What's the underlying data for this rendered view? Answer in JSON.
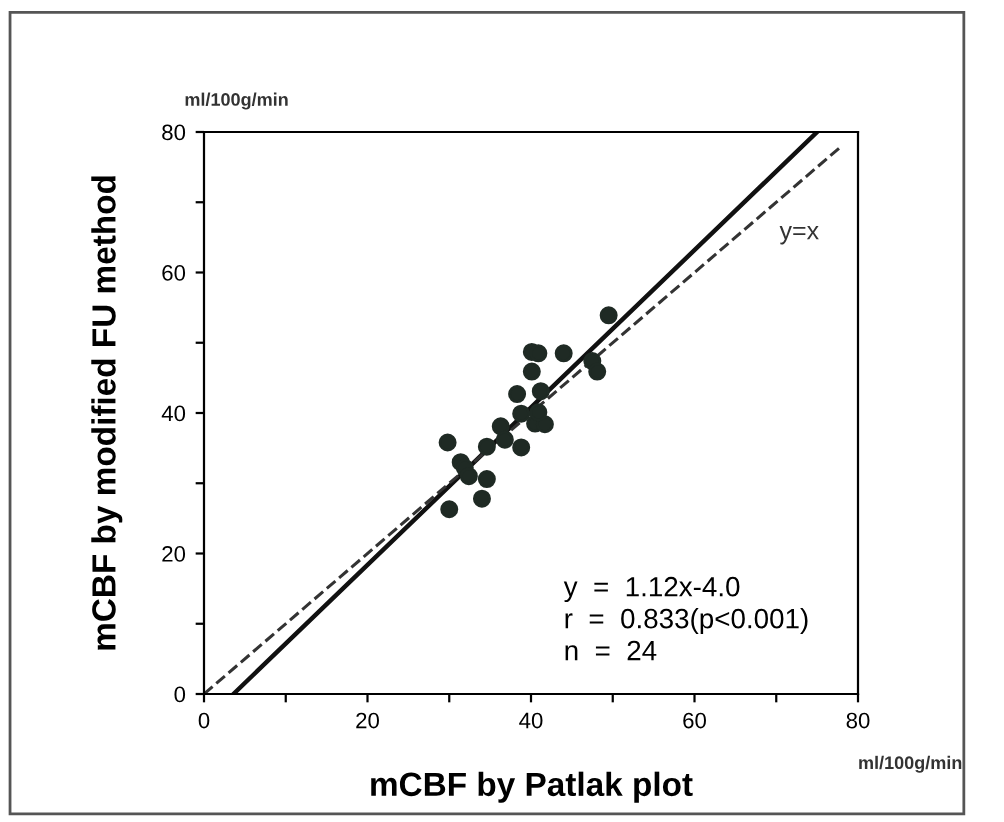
{
  "chart_data": {
    "type": "scatter",
    "xlabel": "mCBF by Patlak plot",
    "ylabel": "mCBF by modified FU method",
    "xlim": [
      0,
      80
    ],
    "ylim": [
      0,
      80
    ],
    "xticks": [
      0,
      {
        "value": 10,
        "label": null
      },
      20,
      {
        "value": 30,
        "label": null
      },
      40,
      {
        "value": 50,
        "label": null
      },
      60,
      {
        "value": 70,
        "label": null
      },
      80
    ],
    "yticks": [
      0,
      {
        "value": 10,
        "label": null
      },
      20,
      {
        "value": 30,
        "label": null
      },
      40,
      {
        "value": 50,
        "label": null
      },
      60,
      {
        "value": 70,
        "label": null
      },
      80
    ],
    "grid": false,
    "legend": false,
    "marker": "circle",
    "series": [
      {
        "color": "#1f2a24",
        "x": [
          29.8,
          30.0,
          31.4,
          31.9,
          32.4,
          34.0,
          34.6,
          34.6,
          36.3,
          36.8,
          38.3,
          38.8,
          38.8,
          40.1,
          40.1,
          40.9,
          40.5,
          41.2,
          41.7,
          44.0,
          47.5,
          48.1,
          49.5,
          40.9
        ],
        "values": [
          35.8,
          26.3,
          33.0,
          32.2,
          31.0,
          27.8,
          30.6,
          35.2,
          38.1,
          36.2,
          42.7,
          35.1,
          39.9,
          45.9,
          48.7,
          48.5,
          38.5,
          43.1,
          38.4,
          48.5,
          47.4,
          45.9,
          53.9,
          40.1
        ]
      },
      {
        "type": "line",
        "color": "#111111",
        "line_style": "solid",
        "marker": "none",
        "x": [
          3.6,
          75
        ],
        "values": [
          0,
          80
        ]
      },
      {
        "type": "line",
        "color": "#333333",
        "line_style": "dashed",
        "marker": "none",
        "x": [
          0,
          78
        ],
        "values": [
          0,
          78
        ]
      }
    ],
    "annotations": [
      "ml/100g/min",
      "ml/100g/min",
      "y=x",
      "y  =  1.12x-4.0\nr  =  0.833(p<0.001)\nn  =  24"
    ]
  }
}
